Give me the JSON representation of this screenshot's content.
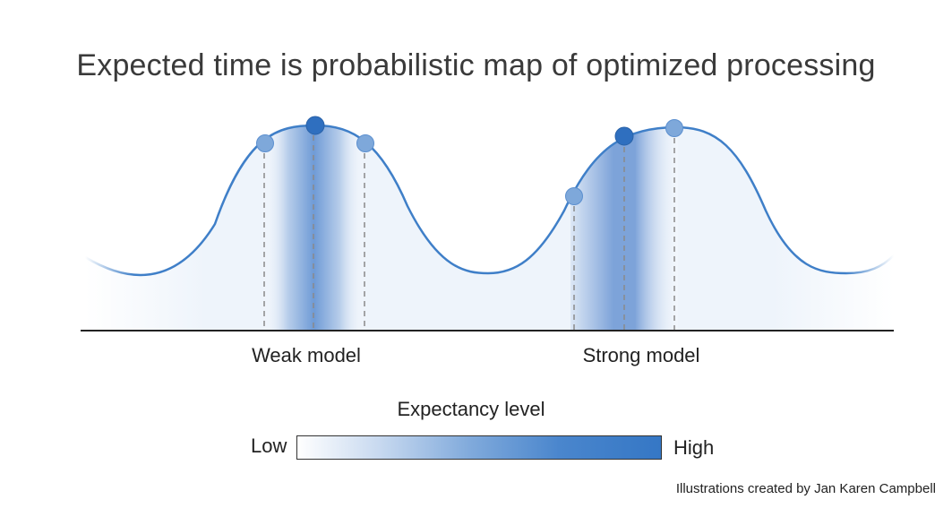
{
  "title": "Expected time is probabilistic map of optimized processing",
  "models": {
    "weak_label": "Weak model",
    "strong_label": "Strong model"
  },
  "legend": {
    "title": "Expectancy level",
    "low_label": "Low",
    "high_label": "High"
  },
  "credit": "Illustrations created by Jan Karen Campbell",
  "colors": {
    "curve": "#3f7fc8",
    "marker_dark": "#2f6fbf",
    "marker_light": "#7ea8da",
    "axis": "#222222",
    "title_text": "#3a3a3a"
  }
}
